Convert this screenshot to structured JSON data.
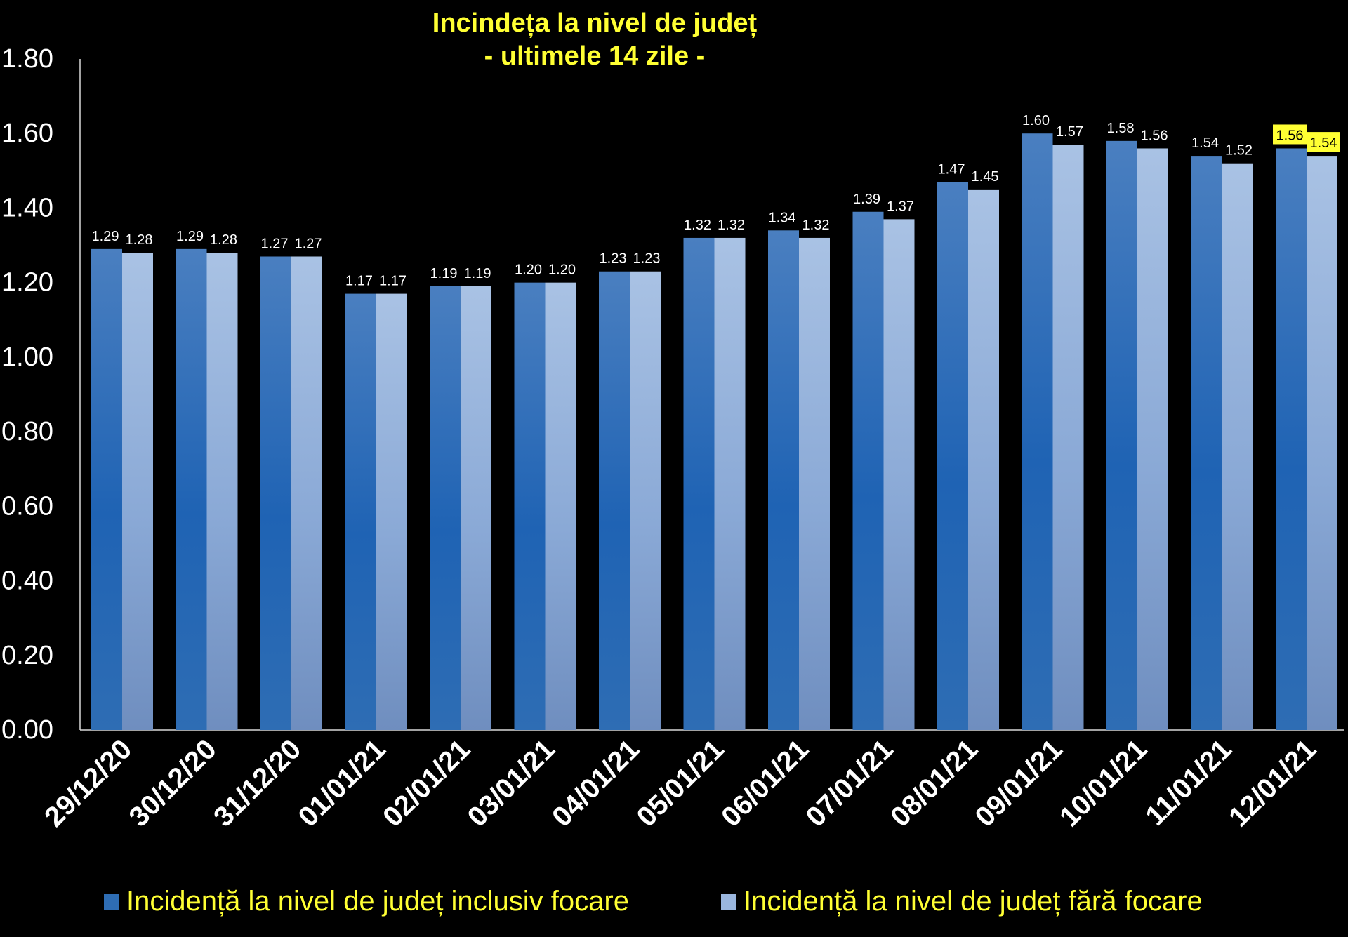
{
  "chart_data": {
    "type": "bar",
    "title": "Incindeța la nivel de județ",
    "subtitle": "- ultimele 14 zile -",
    "xlabel": "",
    "ylabel": "",
    "categories": [
      "29/12/20",
      "30/12/20",
      "31/12/20",
      "01/01/21",
      "02/01/21",
      "03/01/21",
      "04/01/21",
      "05/01/21",
      "06/01/21",
      "07/01/21",
      "08/01/21",
      "09/01/21",
      "10/01/21",
      "11/01/21",
      "12/01/21"
    ],
    "series": [
      {
        "name": "Incidență la nivel de județ inclusiv focare",
        "color": "#2e6db4",
        "values": [
          1.29,
          1.29,
          1.27,
          1.17,
          1.19,
          1.2,
          1.23,
          1.32,
          1.34,
          1.39,
          1.47,
          1.6,
          1.58,
          1.54,
          1.56
        ],
        "labels": [
          "1.29",
          "1.29",
          "1.27",
          "1.17",
          "1.19",
          "1.20",
          "1.23",
          "1.32",
          "1.34",
          "1.39",
          "1.47",
          "1.60",
          "1.58",
          "1.54",
          "1.56"
        ]
      },
      {
        "name": "Incidență la nivel de județ fără focare",
        "color": "#9ab6de",
        "values": [
          1.28,
          1.28,
          1.27,
          1.17,
          1.19,
          1.2,
          1.23,
          1.32,
          1.32,
          1.37,
          1.45,
          1.57,
          1.56,
          1.52,
          1.54
        ],
        "labels": [
          "1.28",
          "1.28",
          "1.27",
          "1.17",
          "1.19",
          "1.20",
          "1.23",
          "1.32",
          "1.32",
          "1.37",
          "1.45",
          "1.57",
          "1.56",
          "1.52",
          "1.54"
        ]
      }
    ],
    "ylim": [
      0,
      1.8
    ],
    "yticks": [
      "0.00",
      "0.20",
      "0.40",
      "0.60",
      "0.80",
      "1.00",
      "1.20",
      "1.40",
      "1.60",
      "1.80"
    ],
    "grid": false,
    "legend": "bottom",
    "highlighted_labels": [
      "12/01/21"
    ],
    "highlight_color": "#ffff33"
  }
}
